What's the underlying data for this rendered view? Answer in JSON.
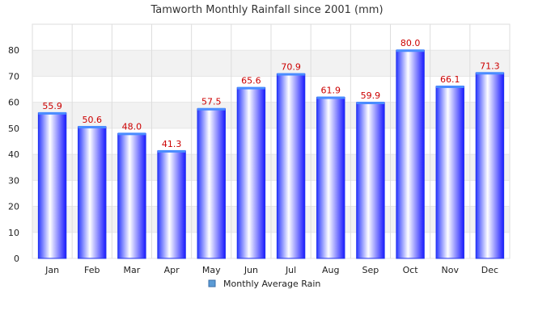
{
  "chart_data": {
    "type": "bar",
    "title": "Tamworth Monthly Rainfall since 2001 (mm)",
    "categories": [
      "Jan",
      "Feb",
      "Mar",
      "Apr",
      "May",
      "Jun",
      "Jul",
      "Aug",
      "Sep",
      "Oct",
      "Nov",
      "Dec"
    ],
    "series": [
      {
        "name": "Monthly Average Rain",
        "values": [
          55.9,
          50.6,
          48.0,
          41.3,
          57.5,
          65.6,
          70.9,
          61.9,
          59.9,
          80.0,
          66.1,
          71.3
        ],
        "data_labels": [
          "55.9",
          "50.6",
          "48.0",
          "41.3",
          "57.5",
          "65.6",
          "70.9",
          "61.9",
          "59.9",
          "80.0",
          "66.1",
          "71.3"
        ]
      }
    ],
    "ylim": [
      0,
      90
    ],
    "yticks": [
      0,
      10,
      20,
      30,
      40,
      50,
      60,
      70,
      80
    ],
    "grid": true,
    "legend_position": "bottom",
    "colors": {
      "bar_edge": "#1a1aff",
      "bar_center": "#ffffff",
      "bar_side": "#3344ff",
      "label": "#cc0000",
      "band": "#f2f2f2",
      "legend_marker": "#5b9bd5"
    }
  }
}
